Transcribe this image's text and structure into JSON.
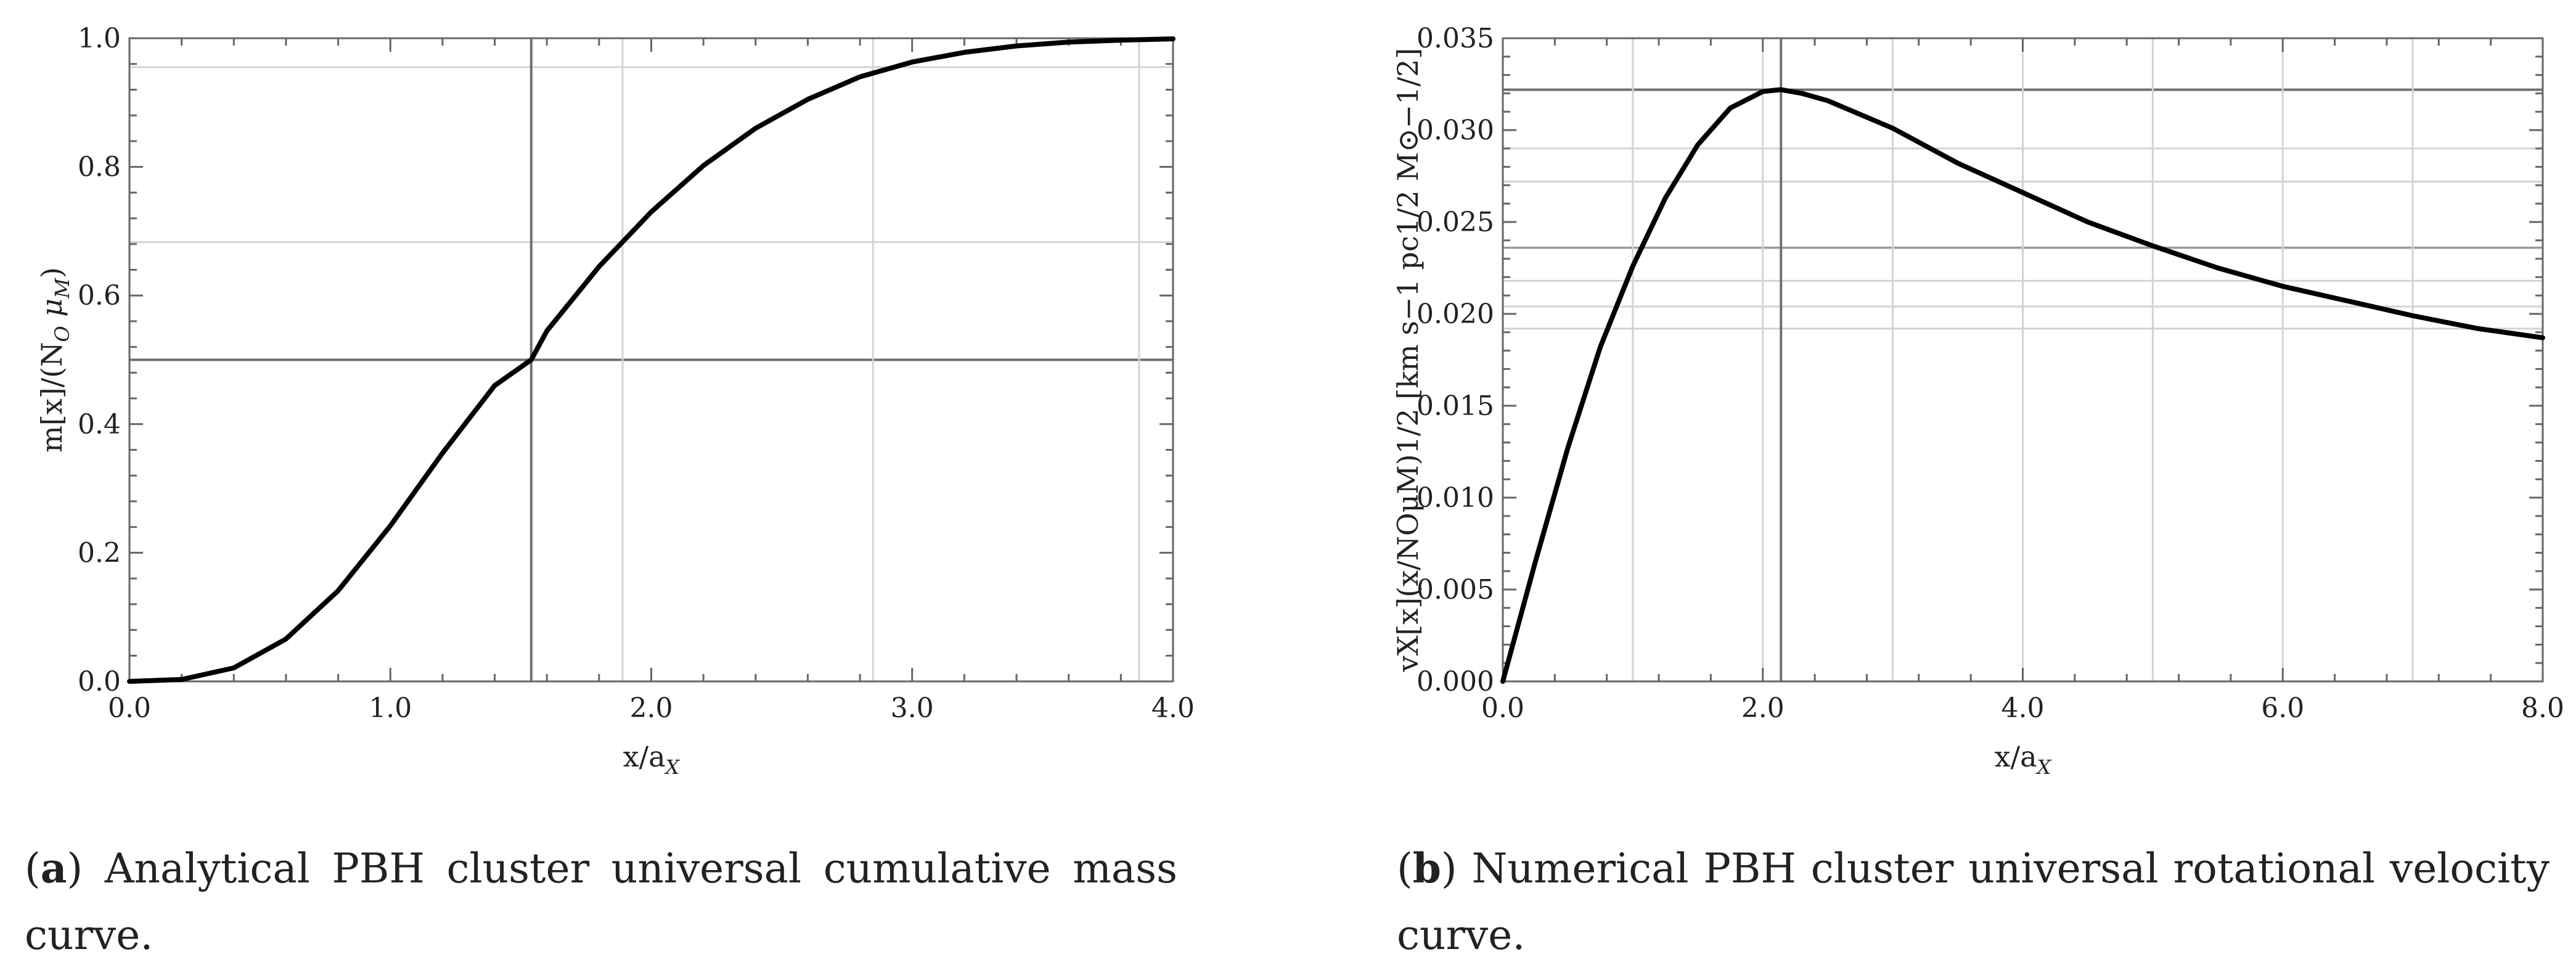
{
  "charts": [
    {
      "id": "a",
      "caption_letter": "a",
      "caption_text": "Analytical PBH cluster universal cumulative mass curve.",
      "xlabel": "x/a",
      "xlabel_sub": "X",
      "ylabel_prefix": "m[x]/(N",
      "ylabel_sub1": "O",
      "ylabel_mid": " μ",
      "ylabel_sub2": "M",
      "ylabel_suffix": ")",
      "xlim": [
        0,
        4
      ],
      "ylim": [
        0,
        1
      ],
      "xticks": [
        {
          "v": 0,
          "label": "0.0"
        },
        {
          "v": 1,
          "label": "1.0"
        },
        {
          "v": 2,
          "label": "2.0"
        },
        {
          "v": 3,
          "label": "3.0"
        },
        {
          "v": 4,
          "label": "4.0"
        }
      ],
      "yticks": [
        {
          "v": 0,
          "label": "0.0"
        },
        {
          "v": 0.2,
          "label": "0.2"
        },
        {
          "v": 0.4,
          "label": "0.4"
        },
        {
          "v": 0.6,
          "label": "0.6"
        },
        {
          "v": 0.8,
          "label": "0.8"
        },
        {
          "v": 1.0,
          "label": "1.0"
        }
      ]
    },
    {
      "id": "b",
      "caption_letter": "b",
      "caption_text": "Numerical PBH cluster universal rotational velocity curve.",
      "xlabel": "x/a",
      "xlabel_sub": "X",
      "ylabel_text": "vX[x](x/NOμM)1/2 [km s−1 pc1/2 M⊙−1/2]",
      "xlim": [
        0,
        8
      ],
      "ylim": [
        0,
        0.035
      ],
      "xticks": [
        {
          "v": 0,
          "label": "0.0"
        },
        {
          "v": 2,
          "label": "2.0"
        },
        {
          "v": 4,
          "label": "4.0"
        },
        {
          "v": 6,
          "label": "6.0"
        },
        {
          "v": 8,
          "label": "8.0"
        }
      ],
      "yticks": [
        {
          "v": 0,
          "label": "0.000"
        },
        {
          "v": 0.005,
          "label": "0.005"
        },
        {
          "v": 0.01,
          "label": "0.010"
        },
        {
          "v": 0.015,
          "label": "0.015"
        },
        {
          "v": 0.02,
          "label": "0.020"
        },
        {
          "v": 0.025,
          "label": "0.025"
        },
        {
          "v": 0.03,
          "label": "0.030"
        },
        {
          "v": 0.035,
          "label": "0.035"
        }
      ]
    }
  ],
  "chart_data": [
    {
      "type": "line",
      "title": "Analytical PBH cluster universal cumulative mass curve.",
      "xlabel": "x/aX",
      "ylabel": "m[x]/(NO μM)",
      "xlim": [
        0,
        4
      ],
      "ylim": [
        0,
        1
      ],
      "grid": true,
      "x": [
        0,
        0.2,
        0.4,
        0.6,
        0.8,
        1.0,
        1.2,
        1.4,
        1.54,
        1.6,
        1.8,
        2.0,
        2.2,
        2.4,
        2.6,
        2.8,
        3.0,
        3.2,
        3.4,
        3.6,
        3.8,
        4.0
      ],
      "series": [
        {
          "name": "m[x]/(NO μM)",
          "values": [
            0.0,
            0.003,
            0.021,
            0.066,
            0.141,
            0.242,
            0.355,
            0.46,
            0.5,
            0.545,
            0.645,
            0.73,
            0.802,
            0.86,
            0.905,
            0.94,
            0.963,
            0.978,
            0.988,
            0.994,
            0.997,
            0.999
          ]
        }
      ],
      "reference_lines": {
        "vertical": [
          {
            "x": 1.54,
            "strength": "strong"
          },
          {
            "x": 1.89,
            "strength": "light"
          },
          {
            "x": 2.85,
            "strength": "light"
          },
          {
            "x": 3.87,
            "strength": "light"
          }
        ],
        "horizontal": [
          {
            "y": 0.5,
            "strength": "strong"
          },
          {
            "y": 0.683,
            "strength": "light"
          },
          {
            "y": 0.955,
            "strength": "light"
          }
        ]
      }
    },
    {
      "type": "line",
      "title": "Numerical PBH cluster universal rotational velocity curve.",
      "xlabel": "x/aX",
      "ylabel": "vX[x](x/NOμM)1/2 [km s−1 pc1/2 M⊙−1/2]",
      "xlim": [
        0,
        8
      ],
      "ylim": [
        0,
        0.035
      ],
      "grid": true,
      "x": [
        0,
        0.25,
        0.5,
        0.75,
        1.0,
        1.25,
        1.5,
        1.75,
        2.0,
        2.14,
        2.3,
        2.5,
        3.0,
        3.5,
        4.0,
        4.5,
        5.0,
        5.5,
        6.0,
        6.5,
        7.0,
        7.5,
        8.0
      ],
      "series": [
        {
          "name": "vX",
          "values": [
            0.0,
            0.0065,
            0.0127,
            0.0182,
            0.0226,
            0.0263,
            0.0292,
            0.0312,
            0.0321,
            0.0322,
            0.032,
            0.0316,
            0.0301,
            0.0282,
            0.0266,
            0.025,
            0.0237,
            0.0225,
            0.0215,
            0.0207,
            0.0199,
            0.0192,
            0.0187
          ]
        }
      ],
      "reference_lines": {
        "vertical": [
          {
            "x": 2.14,
            "strength": "strong"
          },
          {
            "x": 1.0,
            "strength": "light"
          },
          {
            "x": 2.0,
            "strength": "light"
          },
          {
            "x": 3.0,
            "strength": "light"
          },
          {
            "x": 4.0,
            "strength": "light"
          },
          {
            "x": 5.0,
            "strength": "light"
          },
          {
            "x": 6.0,
            "strength": "light"
          },
          {
            "x": 7.0,
            "strength": "light"
          }
        ],
        "horizontal": [
          {
            "y": 0.0322,
            "strength": "strong"
          },
          {
            "y": 0.0236,
            "strength": "medium"
          },
          {
            "y": 0.029,
            "strength": "light"
          },
          {
            "y": 0.0272,
            "strength": "light"
          },
          {
            "y": 0.0218,
            "strength": "light"
          },
          {
            "y": 0.0204,
            "strength": "light"
          },
          {
            "y": 0.0192,
            "strength": "light"
          }
        ]
      }
    }
  ]
}
